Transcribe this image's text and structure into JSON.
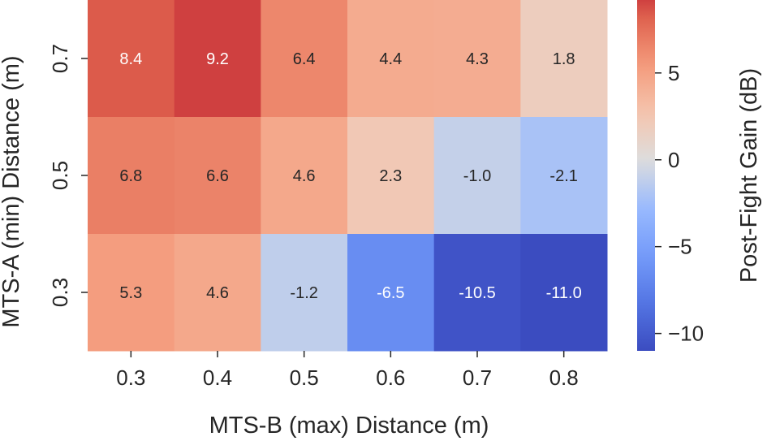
{
  "chart_data": {
    "type": "heatmap",
    "xlabel": "MTS-B (max) Distance (m)",
    "ylabel": "MTS-A (min) Distance (m)",
    "x_ticks": [
      "0.3",
      "0.4",
      "0.5",
      "0.6",
      "0.7",
      "0.8"
    ],
    "y_ticks": [
      "0.7",
      "0.5",
      "0.3"
    ],
    "values": [
      [
        8.4,
        9.2,
        6.4,
        4.4,
        4.3,
        1.8
      ],
      [
        6.8,
        6.6,
        4.6,
        2.3,
        -1.0,
        -2.1
      ],
      [
        5.3,
        4.6,
        -1.2,
        -6.5,
        -10.5,
        -11.0
      ]
    ],
    "value_labels": [
      [
        "8.4",
        "9.2",
        "6.4",
        "4.4",
        "4.3",
        "1.8"
      ],
      [
        "6.8",
        "6.6",
        "4.6",
        "2.3",
        "-1.0",
        "-2.1"
      ],
      [
        "5.3",
        "4.6",
        "-1.2",
        "-6.5",
        "-10.5",
        "-11.0"
      ]
    ],
    "colorbar": {
      "label": "Post-Fight Gain (dB)",
      "range": [
        -11.0,
        9.2
      ],
      "ticks": [
        5,
        0,
        -5,
        -10
      ],
      "tick_labels": [
        "5",
        "0",
        "−5",
        "−10"
      ],
      "colormap": "coolwarm"
    }
  }
}
